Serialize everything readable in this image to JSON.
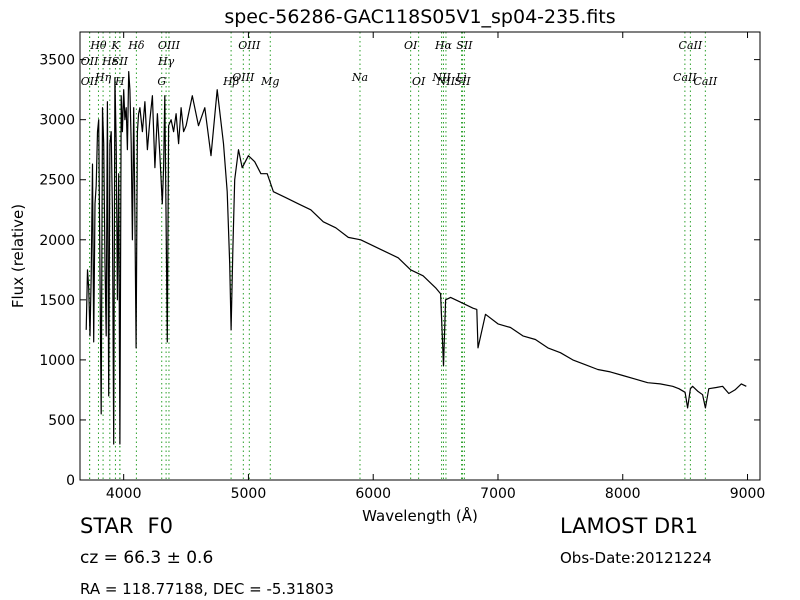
{
  "chart_data": {
    "type": "line",
    "title": "spec-56286-GAC118S05V1_sp04-235.fits",
    "xlabel": "Wavelength (Å)",
    "ylabel": "Flux (relative)",
    "xlim": [
      3650,
      9100
    ],
    "ylim": [
      0,
      3730
    ],
    "x_ticks": [
      4000,
      5000,
      6000,
      7000,
      8000,
      9000
    ],
    "y_ticks": [
      0,
      500,
      1000,
      1500,
      2000,
      2500,
      3000,
      3500
    ],
    "grid": false,
    "line_color": "#000000",
    "marker_color": "#2ca02c",
    "series": [
      {
        "x": [
          3700,
          3710,
          3720,
          3730,
          3740,
          3750,
          3760,
          3770,
          3780,
          3790,
          3800,
          3810,
          3820,
          3830,
          3840,
          3850,
          3860,
          3870,
          3880,
          3890,
          3900,
          3910,
          3920,
          3930,
          3940,
          3950,
          3960,
          3970,
          3980,
          3990,
          4000,
          4010,
          4020,
          4030,
          4040,
          4050,
          4060,
          4070,
          4080,
          4090,
          4100,
          4110,
          4120,
          4130,
          4150,
          4170,
          4190,
          4210,
          4230,
          4250,
          4270,
          4290,
          4310,
          4320,
          4330,
          4340,
          4350,
          4360,
          4380,
          4400,
          4420,
          4440,
          4460,
          4480,
          4500,
          4550,
          4600,
          4650,
          4700,
          4750,
          4800,
          4830,
          4850,
          4861,
          4875,
          4890,
          4920,
          4950,
          5000,
          5050,
          5100,
          5150,
          5200,
          5300,
          5400,
          5500,
          5600,
          5700,
          5800,
          5900,
          6000,
          6100,
          6200,
          6300,
          6400,
          6500,
          6540,
          6563,
          6580,
          6620,
          6700,
          6800,
          6830,
          6840,
          6900,
          7000,
          7100,
          7200,
          7300,
          7400,
          7500,
          7600,
          7700,
          7800,
          7900,
          8000,
          8100,
          8200,
          8300,
          8400,
          8450,
          8500,
          8520,
          8542,
          8560,
          8600,
          8640,
          8662,
          8690,
          8750,
          8800,
          8850,
          8900,
          8950,
          8990
        ],
        "y": [
          1250,
          1750,
          1600,
          1200,
          1700,
          2630,
          1150,
          2300,
          2450,
          2900,
          3000,
          1700,
          550,
          3100,
          2800,
          1800,
          1200,
          3150,
          700,
          2800,
          2900,
          2250,
          300,
          3350,
          2800,
          1500,
          2550,
          300,
          3200,
          2900,
          3250,
          3000,
          3100,
          2750,
          3400,
          3250,
          2800,
          2000,
          3100,
          2200,
          1100,
          2900,
          3050,
          3100,
          2900,
          3150,
          2750,
          3000,
          3200,
          2600,
          3050,
          2700,
          2300,
          2600,
          3200,
          2150,
          1150,
          2950,
          3000,
          2900,
          3050,
          2800,
          3100,
          2900,
          2950,
          3200,
          2950,
          3100,
          2700,
          3250,
          2800,
          2400,
          1800,
          1250,
          1900,
          2500,
          2750,
          2600,
          2700,
          2650,
          2550,
          2550,
          2400,
          2350,
          2300,
          2250,
          2150,
          2100,
          2020,
          2000,
          1950,
          1900,
          1850,
          1750,
          1700,
          1600,
          1550,
          950,
          1500,
          1520,
          1480,
          1430,
          1420,
          1100,
          1380,
          1300,
          1270,
          1200,
          1170,
          1100,
          1060,
          1000,
          960,
          920,
          900,
          870,
          840,
          810,
          800,
          780,
          760,
          730,
          600,
          760,
          780,
          740,
          710,
          600,
          760,
          770,
          780,
          720,
          750,
          800,
          780
        ]
      }
    ],
    "line_markers": [
      {
        "name": "OII",
        "x": 3727,
        "row": 2
      },
      {
        "name": "OII",
        "x": 3727,
        "row": 4
      },
      {
        "name": "Hθ",
        "x": 3798,
        "row": 1
      },
      {
        "name": "Hη",
        "x": 3835,
        "row": 3
      },
      {
        "name": "Hε",
        "x": 3889,
        "row": 2
      },
      {
        "name": "K",
        "x": 3934,
        "row": 1
      },
      {
        "name": "SII",
        "x": 3970,
        "row": 2
      },
      {
        "name": "H",
        "x": 3969,
        "row": 4
      },
      {
        "name": "Hδ",
        "x": 4102,
        "row": 1
      },
      {
        "name": "OIII",
        "x": 4363,
        "row": 1
      },
      {
        "name": "Hγ",
        "x": 4340,
        "row": 2
      },
      {
        "name": "G",
        "x": 4305,
        "row": 4
      },
      {
        "name": "OIII",
        "x": 5007,
        "row": 1
      },
      {
        "name": "OIII",
        "x": 4959,
        "row": 3
      },
      {
        "name": "Hβ",
        "x": 4861,
        "row": 4
      },
      {
        "name": "Mg",
        "x": 5175,
        "row": 4
      },
      {
        "name": "Na",
        "x": 5894,
        "row": 3
      },
      {
        "name": "OI",
        "x": 6300,
        "row": 1
      },
      {
        "name": "OI",
        "x": 6364,
        "row": 4
      },
      {
        "name": "Hα",
        "x": 6563,
        "row": 1
      },
      {
        "name": "NII",
        "x": 6548,
        "row": 3
      },
      {
        "name": "NII",
        "x": 6583,
        "row": 4
      },
      {
        "name": "SII",
        "x": 6731,
        "row": 1
      },
      {
        "name": "Li",
        "x": 6708,
        "row": 3
      },
      {
        "name": "SII",
        "x": 6716,
        "row": 4
      },
      {
        "name": "CaII",
        "x": 8542,
        "row": 1
      },
      {
        "name": "CaII",
        "x": 8498,
        "row": 3
      },
      {
        "name": "CaII",
        "x": 8662,
        "row": 4
      }
    ]
  },
  "info": {
    "class_label": "STAR",
    "subclass": "F0",
    "survey": "LAMOST DR1",
    "cz_text": "cz = 66.3  ± 0.6",
    "obs_date": "Obs-Date:20121224",
    "radec": "RA = 118.77188, DEC = -5.31803"
  }
}
